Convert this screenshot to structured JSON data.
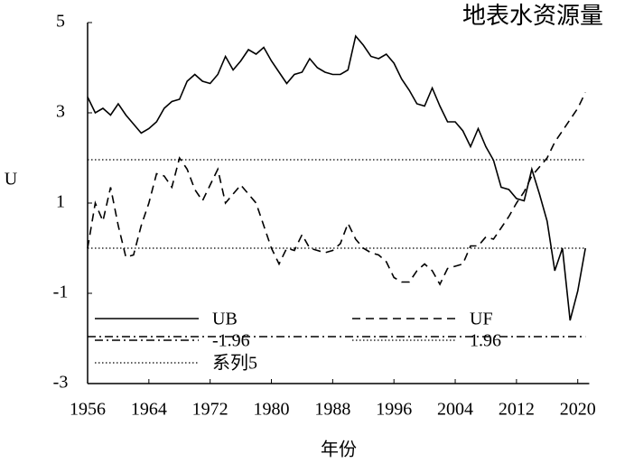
{
  "chart_data": {
    "type": "line",
    "title": "地表水资源量",
    "x_label": "年份",
    "y_label": "U",
    "x": [
      1956,
      1957,
      1958,
      1959,
      1960,
      1961,
      1962,
      1963,
      1964,
      1965,
      1966,
      1967,
      1968,
      1969,
      1970,
      1971,
      1972,
      1973,
      1974,
      1975,
      1976,
      1977,
      1978,
      1979,
      1980,
      1981,
      1982,
      1983,
      1984,
      1985,
      1986,
      1987,
      1988,
      1989,
      1990,
      1991,
      1992,
      1993,
      1994,
      1995,
      1996,
      1997,
      1998,
      1999,
      2000,
      2001,
      2002,
      2003,
      2004,
      2005,
      2006,
      2007,
      2008,
      2009,
      2010,
      2011,
      2012,
      2013,
      2014,
      2015,
      2016,
      2017,
      2018,
      2019,
      2020,
      2021
    ],
    "series": [
      {
        "name": "UB",
        "color": "#000000",
        "line_style": "solid",
        "values": [
          3.35,
          3.0,
          3.1,
          2.95,
          3.2,
          2.95,
          2.75,
          2.55,
          2.65,
          2.8,
          3.1,
          3.25,
          3.3,
          3.7,
          3.85,
          3.7,
          3.65,
          3.85,
          4.25,
          3.95,
          4.15,
          4.4,
          4.3,
          4.45,
          4.15,
          3.9,
          3.65,
          3.85,
          3.9,
          4.2,
          4.0,
          3.9,
          3.85,
          3.85,
          3.95,
          4.7,
          4.5,
          4.25,
          4.2,
          4.3,
          4.1,
          3.75,
          3.5,
          3.2,
          3.15,
          3.55,
          3.15,
          2.8,
          2.8,
          2.6,
          2.25,
          2.65,
          2.25,
          1.95,
          1.35,
          1.3,
          1.1,
          1.05,
          1.75,
          1.2,
          0.6,
          -0.5,
          0.0,
          -1.6,
          -0.95,
          0.0
        ]
      },
      {
        "name": "UF",
        "color": "#000000",
        "line_style": "dashed",
        "values": [
          0.0,
          1.0,
          0.6,
          1.35,
          0.5,
          -0.2,
          -0.15,
          0.5,
          1.0,
          1.65,
          1.6,
          1.35,
          2.0,
          1.75,
          1.3,
          1.05,
          1.4,
          1.75,
          1.0,
          1.2,
          1.4,
          1.2,
          1.0,
          0.5,
          0.0,
          -0.35,
          0.0,
          -0.05,
          0.3,
          0.0,
          -0.05,
          -0.1,
          -0.05,
          0.1,
          0.55,
          0.2,
          0.0,
          -0.1,
          -0.15,
          -0.3,
          -0.65,
          -0.75,
          -0.75,
          -0.5,
          -0.35,
          -0.5,
          -0.8,
          -0.45,
          -0.4,
          -0.35,
          0.05,
          0.05,
          0.25,
          0.2,
          0.45,
          0.7,
          1.0,
          1.25,
          1.6,
          1.8,
          2.0,
          2.35,
          2.6,
          2.85,
          3.1,
          3.45
        ]
      },
      {
        "name": "-1.96",
        "color": "#000000",
        "line_style": "dashdot",
        "values": [
          -1.96,
          -1.96,
          -1.96,
          -1.96,
          -1.96,
          -1.96,
          -1.96,
          -1.96,
          -1.96,
          -1.96,
          -1.96,
          -1.96,
          -1.96,
          -1.96,
          -1.96,
          -1.96,
          -1.96,
          -1.96,
          -1.96,
          -1.96,
          -1.96,
          -1.96,
          -1.96,
          -1.96,
          -1.96,
          -1.96,
          -1.96,
          -1.96,
          -1.96,
          -1.96,
          -1.96,
          -1.96,
          -1.96,
          -1.96,
          -1.96,
          -1.96,
          -1.96,
          -1.96,
          -1.96,
          -1.96,
          -1.96,
          -1.96,
          -1.96,
          -1.96,
          -1.96,
          -1.96,
          -1.96,
          -1.96,
          -1.96,
          -1.96,
          -1.96,
          -1.96,
          -1.96,
          -1.96,
          -1.96,
          -1.96,
          -1.96,
          -1.96,
          -1.96,
          -1.96,
          -1.96,
          -1.96,
          -1.96,
          -1.96,
          -1.96,
          -1.96
        ]
      },
      {
        "name": "1.96",
        "color": "#000000",
        "line_style": "dotted",
        "values": [
          1.96,
          1.96,
          1.96,
          1.96,
          1.96,
          1.96,
          1.96,
          1.96,
          1.96,
          1.96,
          1.96,
          1.96,
          1.96,
          1.96,
          1.96,
          1.96,
          1.96,
          1.96,
          1.96,
          1.96,
          1.96,
          1.96,
          1.96,
          1.96,
          1.96,
          1.96,
          1.96,
          1.96,
          1.96,
          1.96,
          1.96,
          1.96,
          1.96,
          1.96,
          1.96,
          1.96,
          1.96,
          1.96,
          1.96,
          1.96,
          1.96,
          1.96,
          1.96,
          1.96,
          1.96,
          1.96,
          1.96,
          1.96,
          1.96,
          1.96,
          1.96,
          1.96,
          1.96,
          1.96,
          1.96,
          1.96,
          1.96,
          1.96,
          1.96,
          1.96,
          1.96,
          1.96,
          1.96,
          1.96,
          1.96,
          1.96
        ]
      },
      {
        "name": "系列5",
        "color": "#000000",
        "line_style": "dotted",
        "values": [
          0,
          0,
          0,
          0,
          0,
          0,
          0,
          0,
          0,
          0,
          0,
          0,
          0,
          0,
          0,
          0,
          0,
          0,
          0,
          0,
          0,
          0,
          0,
          0,
          0,
          0,
          0,
          0,
          0,
          0,
          0,
          0,
          0,
          0,
          0,
          0,
          0,
          0,
          0,
          0,
          0,
          0,
          0,
          0,
          0,
          0,
          0,
          0,
          0,
          0,
          0,
          0,
          0,
          0,
          0,
          0,
          0,
          0,
          0,
          0,
          0,
          0,
          0,
          0,
          0,
          0
        ]
      }
    ],
    "xlim": [
      1956,
      2021.5
    ],
    "xticks": [
      1956,
      1964,
      1972,
      1980,
      1988,
      1996,
      2004,
      2012,
      2020
    ],
    "ylim": [
      -3,
      5
    ],
    "yticks": [
      -3,
      -1,
      1,
      3,
      5
    ]
  }
}
